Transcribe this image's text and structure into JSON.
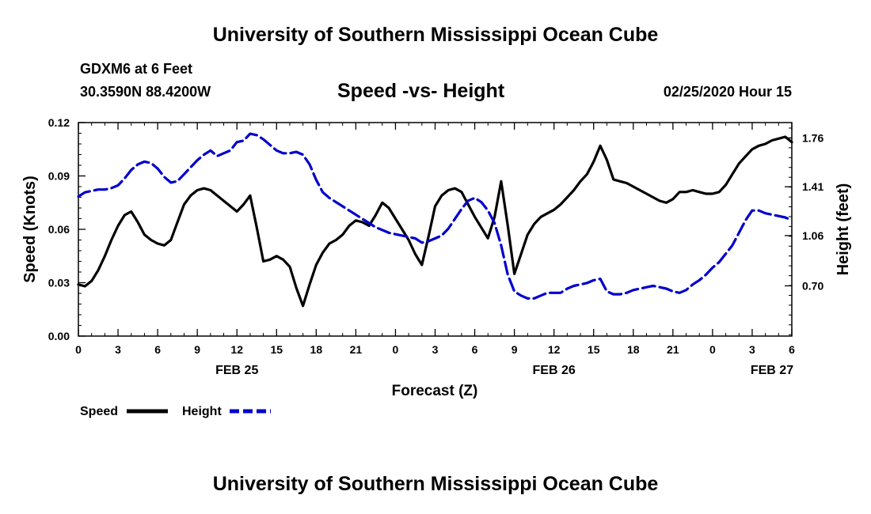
{
  "header": {
    "title": "University of Southern Mississippi Ocean Cube",
    "station": "GDXM6 at 6 Feet",
    "coords": "30.3590N 88.4200W",
    "chart_title": "Speed -vs- Height",
    "datetime": "02/25/2020 Hour 15"
  },
  "footer": {
    "title": "University of Southern Mississippi Ocean Cube"
  },
  "legend": {
    "speed": "Speed",
    "height": "Height"
  },
  "colors": {
    "speed": "#000000",
    "height": "#0000cc"
  },
  "chart_data": {
    "type": "line",
    "title": "Speed -vs- Height",
    "xlabel": "Forecast (Z)",
    "ylabel": "Speed (Knots)",
    "y2label": "Height (feet)",
    "xlim": [
      0,
      54
    ],
    "ylim": [
      0,
      0.12
    ],
    "y2lim": [
      0.34,
      1.87
    ],
    "x_ticks": [
      0,
      3,
      6,
      9,
      12,
      15,
      18,
      21,
      24,
      27,
      30,
      33,
      36,
      39,
      42,
      45,
      48,
      51,
      54
    ],
    "x_tick_labels": [
      "0",
      "3",
      "6",
      "9",
      "12",
      "15",
      "18",
      "21",
      "0",
      "3",
      "6",
      "9",
      "12",
      "15",
      "18",
      "21",
      "0",
      "3",
      "6"
    ],
    "day_labels": [
      {
        "x": 12,
        "label": "FEB 25"
      },
      {
        "x": 36,
        "label": "FEB 26"
      },
      {
        "x": 52.5,
        "label": "FEB 27"
      }
    ],
    "y_ticks": [
      0,
      0.03,
      0.06,
      0.09,
      0.12
    ],
    "y_tick_labels": [
      "0.00",
      "0.03",
      "0.06",
      "0.09",
      "0.12"
    ],
    "y2_ticks": [
      0.7,
      1.06,
      1.41,
      1.76
    ],
    "y2_tick_labels": [
      "0.70",
      "1.06",
      "1.41",
      "1.76"
    ],
    "series": [
      {
        "name": "Speed",
        "axis": "left",
        "style": "solid",
        "x": [
          0,
          0.5,
          1,
          1.5,
          2,
          2.5,
          3,
          3.5,
          4,
          4.5,
          5,
          5.5,
          6,
          6.5,
          7,
          7.5,
          8,
          8.5,
          9,
          9.5,
          10,
          10.5,
          11,
          11.5,
          12,
          12.5,
          13,
          13.5,
          14,
          14.5,
          15,
          15.5,
          16,
          16.5,
          17,
          17.5,
          18,
          18.5,
          19,
          19.5,
          20,
          20.5,
          21,
          21.5,
          22,
          22.5,
          23,
          23.5,
          24,
          24.5,
          25,
          25.5,
          26,
          26.5,
          27,
          27.5,
          28,
          28.5,
          29,
          29.5,
          30,
          30.5,
          31,
          31.5,
          32,
          32.5,
          33,
          33.5,
          34,
          34.5,
          35,
          35.5,
          36,
          36.5,
          37,
          37.5,
          38,
          38.5,
          39,
          39.5,
          40,
          40.5,
          41,
          41.5,
          42,
          42.5,
          43,
          43.5,
          44,
          44.5,
          45,
          45.5,
          46,
          46.5,
          47,
          47.5,
          48,
          48.5,
          49,
          49.5,
          50,
          50.5,
          51,
          51.5,
          52,
          52.5,
          53,
          53.5,
          54
        ],
        "values": [
          0.029,
          0.028,
          0.031,
          0.037,
          0.045,
          0.054,
          0.062,
          0.068,
          0.07,
          0.064,
          0.057,
          0.054,
          0.052,
          0.051,
          0.054,
          0.064,
          0.074,
          0.079,
          0.082,
          0.083,
          0.082,
          0.079,
          0.076,
          0.073,
          0.07,
          0.074,
          0.079,
          0.061,
          0.042,
          0.043,
          0.045,
          0.043,
          0.039,
          0.027,
          0.017,
          0.029,
          0.04,
          0.047,
          0.052,
          0.054,
          0.057,
          0.062,
          0.065,
          0.064,
          0.062,
          0.068,
          0.075,
          0.072,
          0.066,
          0.06,
          0.054,
          0.046,
          0.04,
          0.056,
          0.073,
          0.079,
          0.082,
          0.083,
          0.081,
          0.074,
          0.067,
          0.061,
          0.055,
          0.067,
          0.087,
          0.062,
          0.035,
          0.046,
          0.057,
          0.063,
          0.067,
          0.069,
          0.071,
          0.074,
          0.078,
          0.082,
          0.087,
          0.091,
          0.098,
          0.107,
          0.099,
          0.088,
          0.087,
          0.086,
          0.084,
          0.082,
          0.08,
          0.078,
          0.076,
          0.075,
          0.077,
          0.081,
          0.081,
          0.082,
          0.081,
          0.08,
          0.08,
          0.081,
          0.085,
          0.091,
          0.097,
          0.101,
          0.105,
          0.107,
          0.108,
          0.11,
          0.111,
          0.112,
          0.109
        ]
      },
      {
        "name": "Height",
        "axis": "right",
        "style": "dashed",
        "x": [
          0,
          0.5,
          1,
          1.5,
          2,
          2.5,
          3,
          3.5,
          4,
          4.5,
          5,
          5.5,
          6,
          6.5,
          7,
          7.5,
          8,
          8.5,
          9,
          9.5,
          10,
          10.5,
          11,
          11.5,
          12,
          12.5,
          13,
          13.5,
          14,
          14.5,
          15,
          15.5,
          16,
          16.5,
          17,
          17.5,
          18,
          18.5,
          19,
          19.5,
          20,
          20.5,
          21,
          21.5,
          22,
          22.5,
          23,
          23.5,
          24,
          24.5,
          25,
          25.5,
          26,
          26.5,
          27,
          27.5,
          28,
          28.5,
          29,
          29.5,
          30,
          30.5,
          31,
          31.5,
          32,
          32.5,
          33,
          33.5,
          34,
          34.5,
          35,
          35.5,
          36,
          36.5,
          37,
          37.5,
          38,
          38.5,
          39,
          39.5,
          40,
          40.5,
          41,
          41.5,
          42,
          42.5,
          43,
          43.5,
          44,
          44.5,
          45,
          45.5,
          46,
          46.5,
          47,
          47.5,
          48,
          48.5,
          49,
          49.5,
          50,
          50.5,
          51,
          51.5,
          52,
          52.5,
          53,
          53.5,
          54
        ],
        "values": [
          1.34,
          1.37,
          1.38,
          1.39,
          1.39,
          1.4,
          1.42,
          1.47,
          1.53,
          1.57,
          1.59,
          1.58,
          1.54,
          1.48,
          1.44,
          1.45,
          1.5,
          1.55,
          1.6,
          1.64,
          1.67,
          1.63,
          1.65,
          1.67,
          1.73,
          1.74,
          1.79,
          1.78,
          1.75,
          1.71,
          1.67,
          1.65,
          1.65,
          1.66,
          1.64,
          1.57,
          1.46,
          1.37,
          1.33,
          1.3,
          1.27,
          1.24,
          1.21,
          1.18,
          1.15,
          1.12,
          1.1,
          1.08,
          1.07,
          1.06,
          1.05,
          1.04,
          1.01,
          1.02,
          1.04,
          1.06,
          1.11,
          1.18,
          1.25,
          1.31,
          1.33,
          1.3,
          1.24,
          1.15,
          0.99,
          0.78,
          0.66,
          0.63,
          0.61,
          0.61,
          0.63,
          0.65,
          0.65,
          0.65,
          0.68,
          0.7,
          0.71,
          0.72,
          0.74,
          0.75,
          0.66,
          0.64,
          0.64,
          0.65,
          0.67,
          0.68,
          0.69,
          0.7,
          0.69,
          0.68,
          0.66,
          0.65,
          0.67,
          0.71,
          0.74,
          0.78,
          0.83,
          0.87,
          0.93,
          0.99,
          1.08,
          1.17,
          1.24,
          1.24,
          1.22,
          1.21,
          1.2,
          1.19,
          1.17
        ]
      }
    ]
  }
}
